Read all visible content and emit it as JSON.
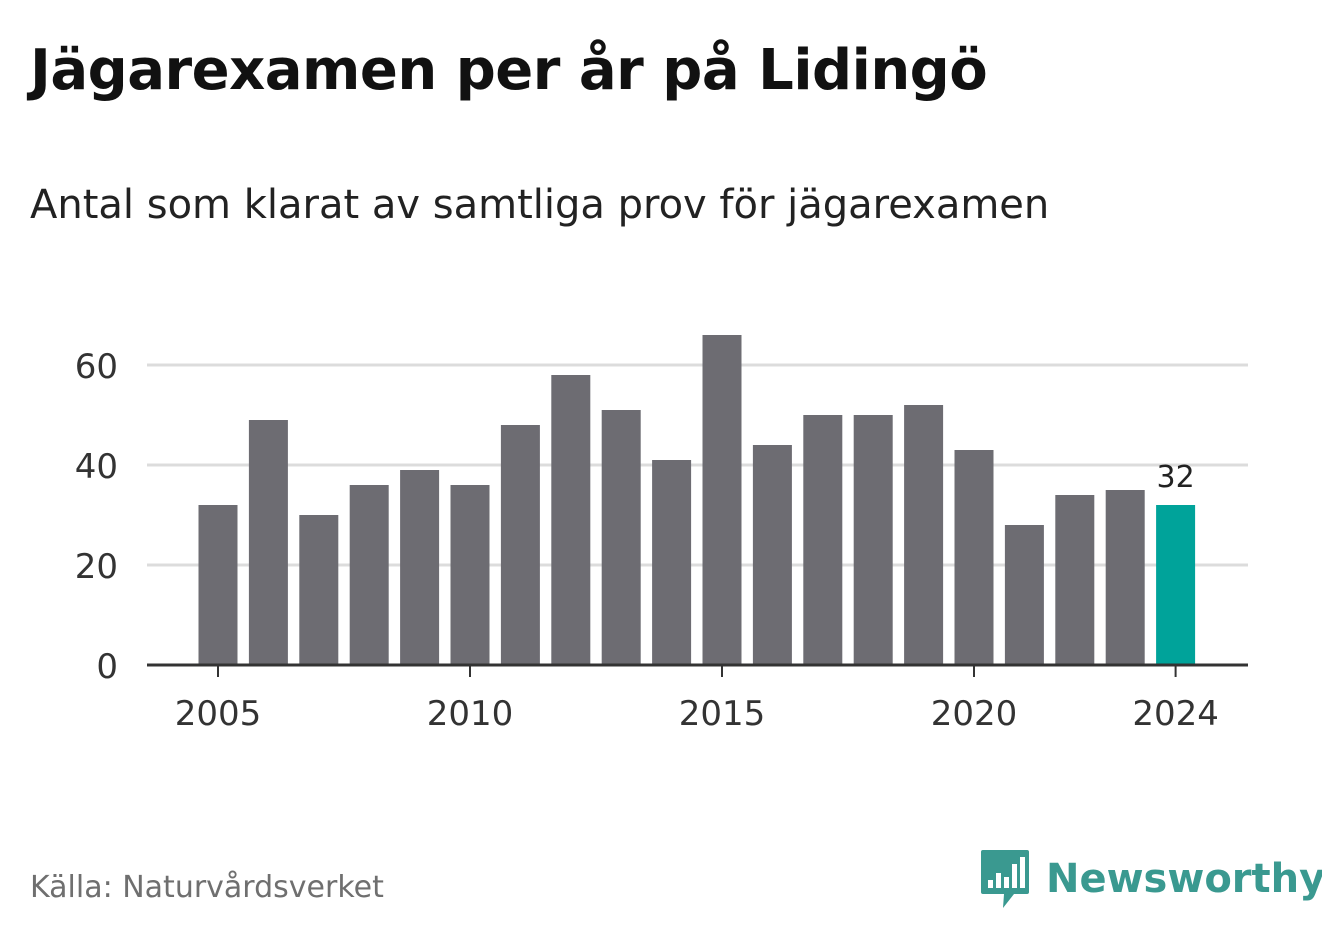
{
  "title": "Jägarexamen per år på Lidingö",
  "subtitle": "Antal som klarat av samtliga prov för jägarexamen",
  "source": "Källa: Naturvårdsverket",
  "brand": {
    "name": "Newsworthy",
    "logo_icon": "newsworthy-logo-icon",
    "color": "#3a9990"
  },
  "colors": {
    "bar": "#6d6c72",
    "highlight": "#00a39a",
    "grid": "#dcdcdc",
    "axis": "#333333",
    "text": "#333333"
  },
  "chart_data": {
    "type": "bar",
    "title": "Jägarexamen per år på Lidingö",
    "subtitle": "Antal som klarat av samtliga prov för jägarexamen",
    "xlabel": "",
    "ylabel": "",
    "categories": [
      2005,
      2006,
      2007,
      2008,
      2009,
      2010,
      2011,
      2012,
      2013,
      2014,
      2015,
      2016,
      2017,
      2018,
      2019,
      2020,
      2021,
      2022,
      2023,
      2024
    ],
    "values": [
      32,
      49,
      30,
      36,
      39,
      36,
      48,
      58,
      51,
      41,
      66,
      44,
      50,
      50,
      52,
      43,
      28,
      34,
      35,
      32
    ],
    "highlight_category": 2024,
    "annotations": [
      {
        "category": 2024,
        "label": "32"
      }
    ],
    "xticks": [
      2005,
      2010,
      2015,
      2020,
      2024
    ],
    "yticks": [
      0,
      20,
      40,
      60
    ],
    "ylim": [
      0,
      70
    ],
    "grid": true,
    "legend": "none"
  }
}
